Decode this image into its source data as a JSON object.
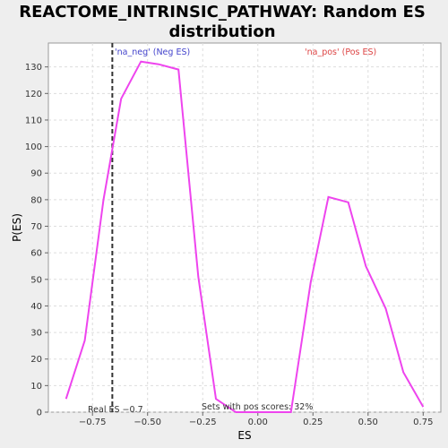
{
  "chart_data": {
    "type": "line",
    "title": [
      "REACTOME_INTRINSIC_PATHWAY: Random ES",
      "distribution"
    ],
    "xlabel": "ES",
    "ylabel": "P(ES)",
    "xlim": [
      -0.95,
      0.83
    ],
    "ylim": [
      0,
      139
    ],
    "xticks": [
      -0.75,
      -0.5,
      -0.25,
      0.0,
      0.25,
      0.5,
      0.75
    ],
    "xtick_labels": [
      "−0.75",
      "−0.50",
      "−0.25",
      "0.00",
      "0.25",
      "0.50",
      "0.75"
    ],
    "yticks": [
      0,
      10,
      20,
      30,
      40,
      50,
      60,
      70,
      80,
      90,
      100,
      110,
      120,
      130
    ],
    "grid": true,
    "series": [
      {
        "color": "#ee44ee",
        "x": [
          -0.87,
          -0.785,
          -0.7,
          -0.62,
          -0.53,
          -0.45,
          -0.36,
          -0.27,
          -0.19,
          -0.1,
          -0.02,
          0.07,
          0.15,
          0.24,
          0.32,
          0.41,
          0.49,
          0.58,
          0.66,
          0.75
        ],
        "y": [
          5,
          27,
          80,
          118,
          132,
          131,
          129,
          51,
          5,
          0,
          0,
          0,
          0,
          49,
          81,
          79,
          55,
          39,
          15,
          2
        ]
      }
    ],
    "real_es": {
      "x": -0.66,
      "color": "#333333",
      "dash": true
    },
    "annotations": {
      "neg_label": "'na_neg' (Neg ES)",
      "neg_color": "#4444cc",
      "pos_label": "'na_pos' (Pos ES)",
      "pos_color": "#dd4444",
      "real_es_label": "Real ES −0.7",
      "pos_scores_label": "Sets with pos scores: 32%"
    }
  }
}
